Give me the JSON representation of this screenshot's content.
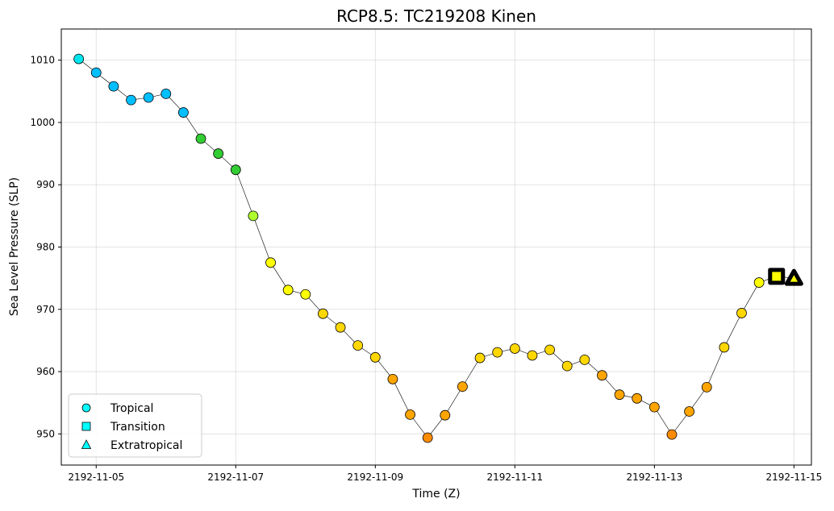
{
  "chart_data": {
    "type": "scatter",
    "title": "RCP8.5: TC219208 Kinen",
    "xlabel": "Time (Z)",
    "ylabel": "Sea Level Pressure (SLP)",
    "xlim": [
      "2192-11-04T12:00",
      "2192-11-15T06:00"
    ],
    "ylim": [
      945,
      1015
    ],
    "x_ticks": [
      "2192-11-05",
      "2192-11-07",
      "2192-11-09",
      "2192-11-11",
      "2192-11-13",
      "2192-11-15"
    ],
    "y_ticks": [
      950,
      960,
      970,
      980,
      990,
      1000,
      1010
    ],
    "grid": true,
    "legend": {
      "placement": "lower-left",
      "entries": [
        {
          "label": "Tropical",
          "marker": "circle",
          "color": "#00ffff"
        },
        {
          "label": "Transition",
          "marker": "square",
          "color": "#00ffff"
        },
        {
          "label": "Extratropical",
          "marker": "triangle",
          "color": "#00ffff"
        }
      ]
    },
    "series": [
      {
        "line_color": "#000000",
        "points": [
          {
            "t": "2192-11-04T18:00",
            "slp": 1010.2,
            "color": "#00e5ee",
            "marker": "circle"
          },
          {
            "t": "2192-11-05T00:00",
            "slp": 1008.0,
            "color": "#00bfff",
            "marker": "circle"
          },
          {
            "t": "2192-11-05T06:00",
            "slp": 1005.8,
            "color": "#00bfff",
            "marker": "circle"
          },
          {
            "t": "2192-11-05T12:00",
            "slp": 1003.6,
            "color": "#00bfff",
            "marker": "circle"
          },
          {
            "t": "2192-11-05T18:00",
            "slp": 1004.0,
            "color": "#00bfff",
            "marker": "circle"
          },
          {
            "t": "2192-11-06T00:00",
            "slp": 1004.6,
            "color": "#00bfff",
            "marker": "circle"
          },
          {
            "t": "2192-11-06T06:00",
            "slp": 1001.6,
            "color": "#00bfff",
            "marker": "circle"
          },
          {
            "t": "2192-11-06T12:00",
            "slp": 997.4,
            "color": "#32cd32",
            "marker": "circle"
          },
          {
            "t": "2192-11-06T18:00",
            "slp": 995.0,
            "color": "#32cd32",
            "marker": "circle"
          },
          {
            "t": "2192-11-07T00:00",
            "slp": 992.4,
            "color": "#32cd32",
            "marker": "circle"
          },
          {
            "t": "2192-11-07T06:00",
            "slp": 985.0,
            "color": "#adff2f",
            "marker": "circle"
          },
          {
            "t": "2192-11-07T12:00",
            "slp": 977.5,
            "color": "#ffff00",
            "marker": "circle"
          },
          {
            "t": "2192-11-07T18:00",
            "slp": 973.1,
            "color": "#ffff00",
            "marker": "circle"
          },
          {
            "t": "2192-11-08T00:00",
            "slp": 972.4,
            "color": "#ffff00",
            "marker": "circle"
          },
          {
            "t": "2192-11-08T06:00",
            "slp": 969.3,
            "color": "#ffd700",
            "marker": "circle"
          },
          {
            "t": "2192-11-08T12:00",
            "slp": 967.1,
            "color": "#ffd700",
            "marker": "circle"
          },
          {
            "t": "2192-11-08T18:00",
            "slp": 964.2,
            "color": "#ffd700",
            "marker": "circle"
          },
          {
            "t": "2192-11-09T00:00",
            "slp": 962.3,
            "color": "#ffd700",
            "marker": "circle"
          },
          {
            "t": "2192-11-09T06:00",
            "slp": 958.8,
            "color": "#ffa500",
            "marker": "circle"
          },
          {
            "t": "2192-11-09T12:00",
            "slp": 953.1,
            "color": "#ffa500",
            "marker": "circle"
          },
          {
            "t": "2192-11-09T18:00",
            "slp": 949.4,
            "color": "#ff8c00",
            "marker": "circle"
          },
          {
            "t": "2192-11-10T00:00",
            "slp": 953.0,
            "color": "#ffa500",
            "marker": "circle"
          },
          {
            "t": "2192-11-10T06:00",
            "slp": 957.6,
            "color": "#ffa500",
            "marker": "circle"
          },
          {
            "t": "2192-11-10T12:00",
            "slp": 962.2,
            "color": "#ffd700",
            "marker": "circle"
          },
          {
            "t": "2192-11-10T18:00",
            "slp": 963.1,
            "color": "#ffd700",
            "marker": "circle"
          },
          {
            "t": "2192-11-11T00:00",
            "slp": 963.7,
            "color": "#ffd700",
            "marker": "circle"
          },
          {
            "t": "2192-11-11T06:00",
            "slp": 962.6,
            "color": "#ffd700",
            "marker": "circle"
          },
          {
            "t": "2192-11-11T12:00",
            "slp": 963.5,
            "color": "#ffd700",
            "marker": "circle"
          },
          {
            "t": "2192-11-11T18:00",
            "slp": 960.9,
            "color": "#ffd700",
            "marker": "circle"
          },
          {
            "t": "2192-11-12T00:00",
            "slp": 961.9,
            "color": "#ffd700",
            "marker": "circle"
          },
          {
            "t": "2192-11-12T06:00",
            "slp": 959.4,
            "color": "#ffa500",
            "marker": "circle"
          },
          {
            "t": "2192-11-12T12:00",
            "slp": 956.3,
            "color": "#ffa500",
            "marker": "circle"
          },
          {
            "t": "2192-11-12T18:00",
            "slp": 955.7,
            "color": "#ffa500",
            "marker": "circle"
          },
          {
            "t": "2192-11-13T00:00",
            "slp": 954.3,
            "color": "#ffa500",
            "marker": "circle"
          },
          {
            "t": "2192-11-13T06:00",
            "slp": 949.9,
            "color": "#ff8c00",
            "marker": "circle"
          },
          {
            "t": "2192-11-13T12:00",
            "slp": 953.6,
            "color": "#ffa500",
            "marker": "circle"
          },
          {
            "t": "2192-11-13T18:00",
            "slp": 957.5,
            "color": "#ffa500",
            "marker": "circle"
          },
          {
            "t": "2192-11-14T00:00",
            "slp": 963.9,
            "color": "#ffd700",
            "marker": "circle"
          },
          {
            "t": "2192-11-14T06:00",
            "slp": 969.4,
            "color": "#ffd700",
            "marker": "circle"
          },
          {
            "t": "2192-11-14T12:00",
            "slp": 974.3,
            "color": "#ffff00",
            "marker": "circle"
          },
          {
            "t": "2192-11-14T18:00",
            "slp": 975.3,
            "color": "#ffff00",
            "marker": "square"
          },
          {
            "t": "2192-11-15T00:00",
            "slp": 975.0,
            "color": "#ffff00",
            "marker": "triangle"
          }
        ]
      }
    ]
  }
}
